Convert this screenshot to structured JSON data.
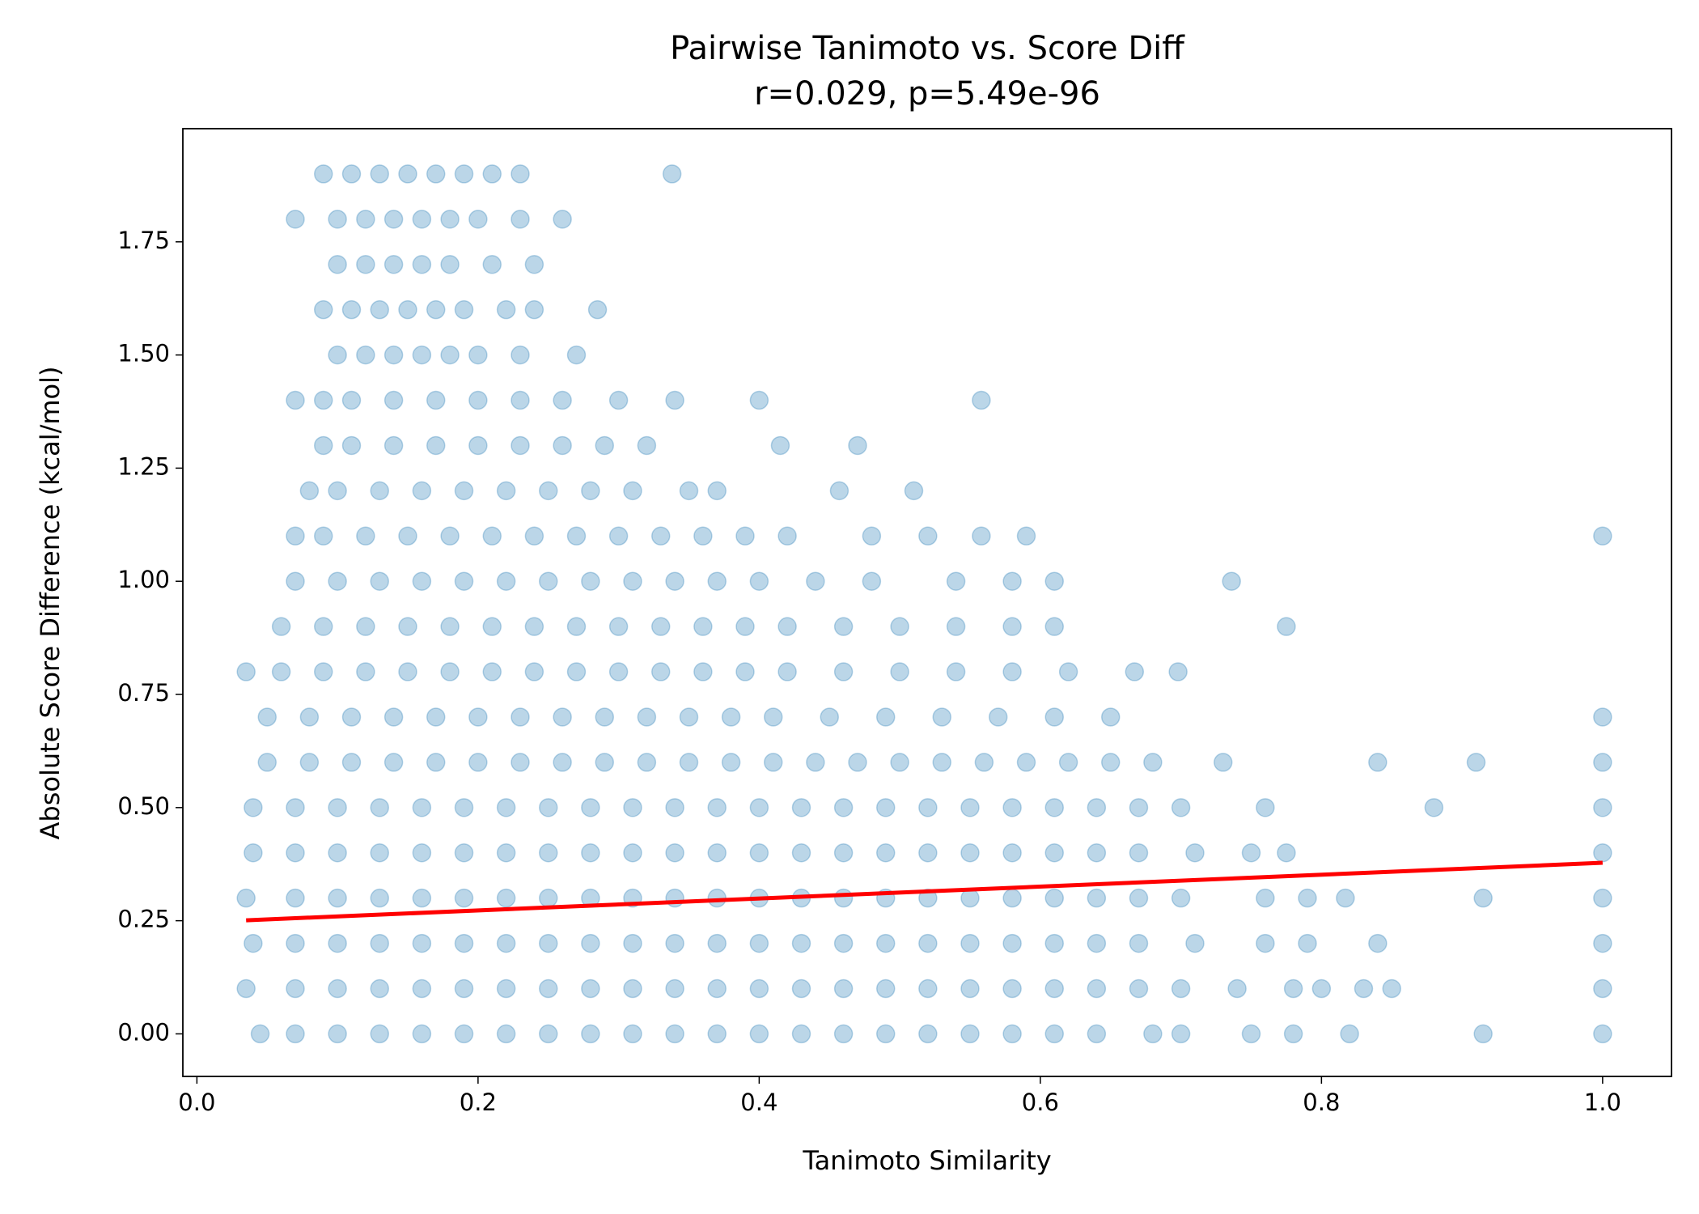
{
  "chart_data": {
    "type": "scatter",
    "title": "Pairwise Tanimoto vs. Score Diff",
    "subtitle": "r=0.029, p=5.49e-96",
    "xlabel": "Tanimoto Similarity",
    "ylabel": "Absolute Score Difference (kcal/mol)",
    "color": "#1f77b4",
    "opacity": 0.3,
    "xlim": [
      -0.01,
      1.049
    ],
    "ylim": [
      -0.094,
      2.0
    ],
    "xticks": [
      {
        "value": 0,
        "label": "0.0"
      },
      {
        "value": 0.2,
        "label": "0.2"
      },
      {
        "value": 0.4,
        "label": "0.4"
      },
      {
        "value": 0.6,
        "label": "0.6"
      },
      {
        "value": 0.8,
        "label": "0.8"
      },
      {
        "value": 1,
        "label": "1.0"
      }
    ],
    "yticks": [
      {
        "value": 0,
        "label": "0.00"
      },
      {
        "value": 0.25,
        "label": "0.25"
      },
      {
        "value": 0.5,
        "label": "0.50"
      },
      {
        "value": 0.75,
        "label": "0.75"
      },
      {
        "value": 1,
        "label": "1.00"
      },
      {
        "value": 1.25,
        "label": "1.25"
      },
      {
        "value": 1.5,
        "label": "1.50"
      },
      {
        "value": 1.75,
        "label": "1.75"
      }
    ],
    "series": [
      {
        "x": [
          0.09,
          0.11,
          0.13,
          0.15,
          0.17,
          0.19,
          0.21,
          0.23,
          0.338
        ],
        "values": [
          1.9,
          1.9,
          1.9,
          1.9,
          1.9,
          1.9,
          1.9,
          1.9,
          1.9
        ]
      },
      {
        "x": [
          0.07,
          0.1,
          0.12,
          0.14,
          0.16,
          0.18,
          0.2,
          0.23,
          0.26
        ],
        "values": [
          1.8,
          1.8,
          1.8,
          1.8,
          1.8,
          1.8,
          1.8,
          1.8,
          1.8
        ]
      },
      {
        "x": [
          0.1,
          0.12,
          0.14,
          0.16,
          0.18,
          0.21,
          0.24
        ],
        "values": [
          1.7,
          1.7,
          1.7,
          1.7,
          1.7,
          1.7,
          1.7
        ]
      },
      {
        "x": [
          0.09,
          0.11,
          0.13,
          0.15,
          0.17,
          0.19,
          0.22,
          0.24,
          0.285
        ],
        "values": [
          1.6,
          1.6,
          1.6,
          1.6,
          1.6,
          1.6,
          1.6,
          1.6,
          1.6
        ]
      },
      {
        "x": [
          0.1,
          0.12,
          0.14,
          0.16,
          0.18,
          0.2,
          0.23,
          0.27
        ],
        "values": [
          1.5,
          1.5,
          1.5,
          1.5,
          1.5,
          1.5,
          1.5,
          1.5
        ]
      },
      {
        "x": [
          0.07,
          0.09,
          0.11,
          0.14,
          0.17,
          0.2,
          0.23,
          0.26,
          0.3,
          0.34,
          0.4,
          0.558
        ],
        "values": [
          1.4,
          1.4,
          1.4,
          1.4,
          1.4,
          1.4,
          1.4,
          1.4,
          1.4,
          1.4,
          1.4,
          1.4
        ]
      },
      {
        "x": [
          0.09,
          0.11,
          0.14,
          0.17,
          0.2,
          0.23,
          0.26,
          0.29,
          0.32,
          0.415,
          0.47
        ],
        "values": [
          1.3,
          1.3,
          1.3,
          1.3,
          1.3,
          1.3,
          1.3,
          1.3,
          1.3,
          1.3,
          1.3
        ]
      },
      {
        "x": [
          0.08,
          0.1,
          0.13,
          0.16,
          0.19,
          0.22,
          0.25,
          0.28,
          0.31,
          0.35,
          0.37,
          0.457,
          0.51
        ],
        "values": [
          1.2,
          1.2,
          1.2,
          1.2,
          1.2,
          1.2,
          1.2,
          1.2,
          1.2,
          1.2,
          1.2,
          1.2,
          1.2
        ]
      },
      {
        "x": [
          0.07,
          0.09,
          0.12,
          0.15,
          0.18,
          0.21,
          0.24,
          0.27,
          0.3,
          0.33,
          0.36,
          0.39,
          0.42,
          0.48,
          0.52,
          0.558,
          0.59,
          1.0
        ],
        "values": [
          1.1,
          1.1,
          1.1,
          1.1,
          1.1,
          1.1,
          1.1,
          1.1,
          1.1,
          1.1,
          1.1,
          1.1,
          1.1,
          1.1,
          1.1,
          1.1,
          1.1,
          1.1
        ]
      },
      {
        "x": [
          0.07,
          0.1,
          0.13,
          0.16,
          0.19,
          0.22,
          0.25,
          0.28,
          0.31,
          0.34,
          0.37,
          0.4,
          0.44,
          0.48,
          0.54,
          0.58,
          0.61,
          0.736
        ],
        "values": [
          1.0,
          1.0,
          1.0,
          1.0,
          1.0,
          1.0,
          1.0,
          1.0,
          1.0,
          1.0,
          1.0,
          1.0,
          1.0,
          1.0,
          1.0,
          1.0,
          1.0,
          1.0
        ]
      },
      {
        "x": [
          0.06,
          0.09,
          0.12,
          0.15,
          0.18,
          0.21,
          0.24,
          0.27,
          0.3,
          0.33,
          0.36,
          0.39,
          0.42,
          0.46,
          0.5,
          0.54,
          0.58,
          0.61,
          0.775
        ],
        "values": [
          0.9,
          0.9,
          0.9,
          0.9,
          0.9,
          0.9,
          0.9,
          0.9,
          0.9,
          0.9,
          0.9,
          0.9,
          0.9,
          0.9,
          0.9,
          0.9,
          0.9,
          0.9,
          0.9
        ]
      },
      {
        "x": [
          0.035,
          0.06,
          0.09,
          0.12,
          0.15,
          0.18,
          0.21,
          0.24,
          0.27,
          0.3,
          0.33,
          0.36,
          0.39,
          0.42,
          0.46,
          0.5,
          0.54,
          0.58,
          0.62,
          0.667,
          0.698
        ],
        "values": [
          0.8,
          0.8,
          0.8,
          0.8,
          0.8,
          0.8,
          0.8,
          0.8,
          0.8,
          0.8,
          0.8,
          0.8,
          0.8,
          0.8,
          0.8,
          0.8,
          0.8,
          0.8,
          0.8,
          0.8,
          0.8
        ]
      },
      {
        "x": [
          0.05,
          0.08,
          0.11,
          0.14,
          0.17,
          0.2,
          0.23,
          0.26,
          0.29,
          0.32,
          0.35,
          0.38,
          0.41,
          0.45,
          0.49,
          0.53,
          0.57,
          0.61,
          0.65,
          1.0
        ],
        "values": [
          0.7,
          0.7,
          0.7,
          0.7,
          0.7,
          0.7,
          0.7,
          0.7,
          0.7,
          0.7,
          0.7,
          0.7,
          0.7,
          0.7,
          0.7,
          0.7,
          0.7,
          0.7,
          0.7,
          0.7
        ]
      },
      {
        "x": [
          0.05,
          0.08,
          0.11,
          0.14,
          0.17,
          0.2,
          0.23,
          0.26,
          0.29,
          0.32,
          0.35,
          0.38,
          0.41,
          0.44,
          0.47,
          0.5,
          0.53,
          0.56,
          0.59,
          0.62,
          0.65,
          0.68,
          0.73,
          0.84,
          0.91,
          1.0
        ],
        "values": [
          0.6,
          0.6,
          0.6,
          0.6,
          0.6,
          0.6,
          0.6,
          0.6,
          0.6,
          0.6,
          0.6,
          0.6,
          0.6,
          0.6,
          0.6,
          0.6,
          0.6,
          0.6,
          0.6,
          0.6,
          0.6,
          0.6,
          0.6,
          0.6,
          0.6,
          0.6
        ]
      },
      {
        "x": [
          0.04,
          0.07,
          0.1,
          0.13,
          0.16,
          0.19,
          0.22,
          0.25,
          0.28,
          0.31,
          0.34,
          0.37,
          0.4,
          0.43,
          0.46,
          0.49,
          0.52,
          0.55,
          0.58,
          0.61,
          0.64,
          0.67,
          0.7,
          0.76,
          0.88,
          1.0
        ],
        "values": [
          0.5,
          0.5,
          0.5,
          0.5,
          0.5,
          0.5,
          0.5,
          0.5,
          0.5,
          0.5,
          0.5,
          0.5,
          0.5,
          0.5,
          0.5,
          0.5,
          0.5,
          0.5,
          0.5,
          0.5,
          0.5,
          0.5,
          0.5,
          0.5,
          0.5,
          0.5
        ]
      },
      {
        "x": [
          0.04,
          0.07,
          0.1,
          0.13,
          0.16,
          0.19,
          0.22,
          0.25,
          0.28,
          0.31,
          0.34,
          0.37,
          0.4,
          0.43,
          0.46,
          0.49,
          0.52,
          0.55,
          0.58,
          0.61,
          0.64,
          0.67,
          0.71,
          0.75,
          0.775,
          1.0
        ],
        "values": [
          0.4,
          0.4,
          0.4,
          0.4,
          0.4,
          0.4,
          0.4,
          0.4,
          0.4,
          0.4,
          0.4,
          0.4,
          0.4,
          0.4,
          0.4,
          0.4,
          0.4,
          0.4,
          0.4,
          0.4,
          0.4,
          0.4,
          0.4,
          0.4,
          0.4,
          0.4
        ]
      },
      {
        "x": [
          0.035,
          0.07,
          0.1,
          0.13,
          0.16,
          0.19,
          0.22,
          0.25,
          0.28,
          0.31,
          0.34,
          0.37,
          0.4,
          0.43,
          0.46,
          0.49,
          0.52,
          0.55,
          0.58,
          0.61,
          0.64,
          0.67,
          0.7,
          0.76,
          0.79,
          0.817,
          0.915,
          1.0
        ],
        "values": [
          0.3,
          0.3,
          0.3,
          0.3,
          0.3,
          0.3,
          0.3,
          0.3,
          0.3,
          0.3,
          0.3,
          0.3,
          0.3,
          0.3,
          0.3,
          0.3,
          0.3,
          0.3,
          0.3,
          0.3,
          0.3,
          0.3,
          0.3,
          0.3,
          0.3,
          0.3,
          0.3,
          0.3
        ]
      },
      {
        "x": [
          0.04,
          0.07,
          0.1,
          0.13,
          0.16,
          0.19,
          0.22,
          0.25,
          0.28,
          0.31,
          0.34,
          0.37,
          0.4,
          0.43,
          0.46,
          0.49,
          0.52,
          0.55,
          0.58,
          0.61,
          0.64,
          0.67,
          0.71,
          0.76,
          0.79,
          0.84,
          1.0
        ],
        "values": [
          0.2,
          0.2,
          0.2,
          0.2,
          0.2,
          0.2,
          0.2,
          0.2,
          0.2,
          0.2,
          0.2,
          0.2,
          0.2,
          0.2,
          0.2,
          0.2,
          0.2,
          0.2,
          0.2,
          0.2,
          0.2,
          0.2,
          0.2,
          0.2,
          0.2,
          0.2,
          0.2
        ]
      },
      {
        "x": [
          0.035,
          0.07,
          0.1,
          0.13,
          0.16,
          0.19,
          0.22,
          0.25,
          0.28,
          0.31,
          0.34,
          0.37,
          0.4,
          0.43,
          0.46,
          0.49,
          0.52,
          0.55,
          0.58,
          0.61,
          0.64,
          0.67,
          0.7,
          0.74,
          0.78,
          0.8,
          0.83,
          0.85,
          1.0
        ],
        "values": [
          0.1,
          0.1,
          0.1,
          0.1,
          0.1,
          0.1,
          0.1,
          0.1,
          0.1,
          0.1,
          0.1,
          0.1,
          0.1,
          0.1,
          0.1,
          0.1,
          0.1,
          0.1,
          0.1,
          0.1,
          0.1,
          0.1,
          0.1,
          0.1,
          0.1,
          0.1,
          0.1,
          0.1,
          0.1
        ]
      },
      {
        "x": [
          0.045,
          0.07,
          0.1,
          0.13,
          0.16,
          0.19,
          0.22,
          0.25,
          0.28,
          0.31,
          0.34,
          0.37,
          0.4,
          0.43,
          0.46,
          0.49,
          0.52,
          0.55,
          0.58,
          0.61,
          0.64,
          0.68,
          0.7,
          0.75,
          0.78,
          0.82,
          0.915,
          1.0
        ],
        "values": [
          0,
          0,
          0,
          0,
          0,
          0,
          0,
          0,
          0,
          0,
          0,
          0,
          0,
          0,
          0,
          0,
          0,
          0,
          0,
          0,
          0,
          0,
          0,
          0,
          0,
          0,
          0,
          0
        ]
      }
    ],
    "fit": {
      "color": "#ff0000",
      "x": [
        0.035,
        1.0
      ],
      "values": [
        0.251,
        0.378
      ]
    }
  }
}
